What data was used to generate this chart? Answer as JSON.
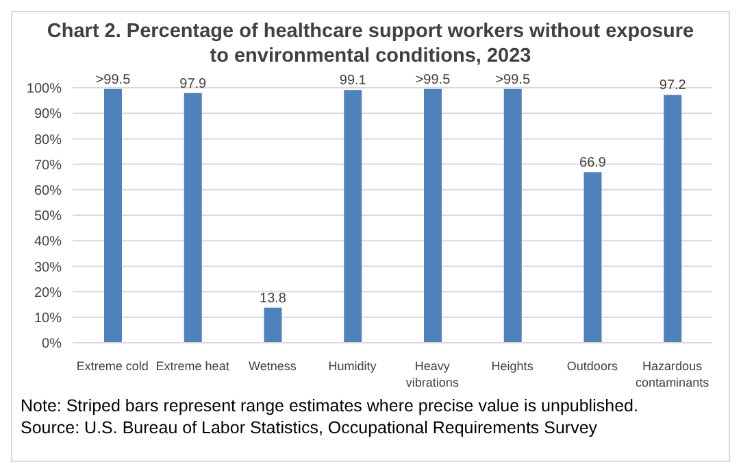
{
  "chart_data": {
    "type": "bar",
    "title": "Chart 2. Percentage of healthcare support workers without exposure to environmental conditions, 2023",
    "categories": [
      "Extreme cold",
      "Extreme heat",
      "Wetness",
      "Humidity",
      "Heavy vibrations",
      "Heights",
      "Outdoors",
      "Hazardous contaminants"
    ],
    "values": [
      99.5,
      97.9,
      13.8,
      99.1,
      99.5,
      99.5,
      66.9,
      97.2
    ],
    "value_labels": [
      ">99.5",
      "97.9",
      "13.8",
      "99.1",
      ">99.5",
      ">99.5",
      "66.9",
      "97.2"
    ],
    "color": "#4f81bd",
    "ylim": [
      0,
      100
    ],
    "yticks": [
      {
        "value": 0,
        "label": "0%"
      },
      {
        "value": 10,
        "label": "10%"
      },
      {
        "value": 20,
        "label": "20%"
      },
      {
        "value": 30,
        "label": "30%"
      },
      {
        "value": 40,
        "label": "40%"
      },
      {
        "value": 50,
        "label": "50%"
      },
      {
        "value": 60,
        "label": "60%"
      },
      {
        "value": 70,
        "label": "70%"
      },
      {
        "value": 80,
        "label": "80%"
      },
      {
        "value": 90,
        "label": "90%"
      },
      {
        "value": 100,
        "label": "100%"
      }
    ],
    "grid": "y",
    "annotations": [
      "Note: Striped bars represent range estimates where precise value is unpublished.",
      "Source: U.S. Bureau of Labor Statistics, Occupational Requirements Survey"
    ]
  }
}
